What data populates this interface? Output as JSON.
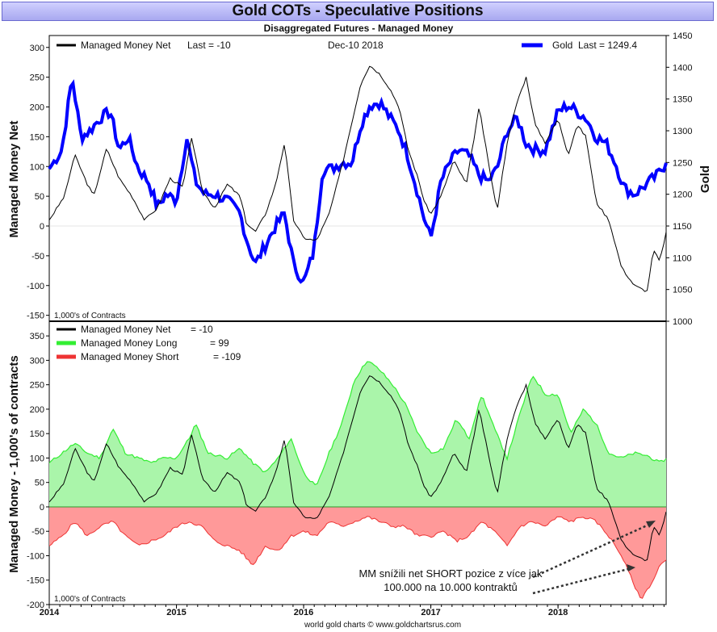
{
  "title": "Gold COTs - Speculative Positions",
  "subtitle": "Disaggregated Futures - Managed Money",
  "footer": "world gold charts © www.goldchartsrus.com",
  "colors": {
    "net": "#000000",
    "gold": "#0000ff",
    "long": "#33ee33",
    "long_fill": "#aaf5aa",
    "short": "#ee3333",
    "short_fill": "#ff9999"
  },
  "chart_data": [
    {
      "type": "line",
      "ylabel": "Managed Money Net",
      "y2label": "Gold",
      "ylim": [
        -160,
        320
      ],
      "y2lim": [
        1000,
        1450
      ],
      "yticks": [
        -150,
        -100,
        -50,
        0,
        50,
        100,
        150,
        200,
        250,
        300
      ],
      "y2ticks": [
        1000,
        1050,
        1100,
        1150,
        1200,
        1250,
        1300,
        1350,
        1400,
        1450
      ],
      "xlim": [
        2014.0,
        2018.85
      ],
      "unit_note": "1,000's of Contracts",
      "date_label": "Dec-10  2018",
      "legend": [
        {
          "name": "Managed Money Net",
          "last_text": "Last = -10"
        },
        {
          "name": "Gold",
          "last_text": "Last = 1249.4"
        }
      ],
      "series": [
        {
          "name": "Managed Money Net",
          "axis": "left",
          "x": [
            2014.0,
            2014.12,
            2014.2,
            2014.3,
            2014.35,
            2014.45,
            2014.55,
            2014.65,
            2014.75,
            2014.85,
            2014.95,
            2015.05,
            2015.12,
            2015.2,
            2015.3,
            2015.4,
            2015.5,
            2015.55,
            2015.62,
            2015.7,
            2015.78,
            2015.85,
            2015.92,
            2016.0,
            2016.1,
            2016.2,
            2016.3,
            2016.38,
            2016.45,
            2016.52,
            2016.6,
            2016.68,
            2016.75,
            2016.82,
            2016.9,
            2016.95,
            2017.0,
            2017.08,
            2017.18,
            2017.28,
            2017.38,
            2017.45,
            2017.52,
            2017.6,
            2017.68,
            2017.75,
            2017.82,
            2017.9,
            2018.0,
            2018.08,
            2018.15,
            2018.22,
            2018.3,
            2018.4,
            2018.5,
            2018.6,
            2018.7,
            2018.75,
            2018.8,
            2018.85
          ],
          "y": [
            10,
            50,
            120,
            70,
            50,
            130,
            80,
            50,
            10,
            30,
            80,
            65,
            150,
            60,
            30,
            70,
            50,
            5,
            -10,
            20,
            70,
            140,
            10,
            -20,
            -25,
            20,
            100,
            175,
            240,
            270,
            255,
            230,
            200,
            130,
            80,
            40,
            20,
            50,
            110,
            70,
            200,
            110,
            25,
            140,
            210,
            250,
            170,
            140,
            180,
            120,
            170,
            150,
            40,
            10,
            -70,
            -100,
            -110,
            -40,
            -60,
            -10
          ]
        },
        {
          "name": "Gold",
          "axis": "right",
          "x": [
            2014.0,
            2014.1,
            2014.18,
            2014.25,
            2014.32,
            2014.4,
            2014.48,
            2014.55,
            2014.62,
            2014.7,
            2014.78,
            2014.85,
            2014.92,
            2015.0,
            2015.08,
            2015.15,
            2015.22,
            2015.3,
            2015.4,
            2015.5,
            2015.55,
            2015.62,
            2015.7,
            2015.78,
            2015.85,
            2015.92,
            2016.0,
            2016.08,
            2016.15,
            2016.22,
            2016.3,
            2016.38,
            2016.45,
            2016.52,
            2016.6,
            2016.68,
            2016.75,
            2016.82,
            2016.9,
            2016.95,
            2017.0,
            2017.08,
            2017.15,
            2017.22,
            2017.3,
            2017.38,
            2017.45,
            2017.52,
            2017.6,
            2017.68,
            2017.75,
            2017.82,
            2017.9,
            2018.0,
            2018.08,
            2018.15,
            2018.22,
            2018.3,
            2018.38,
            2018.45,
            2018.52,
            2018.6,
            2018.66,
            2018.72,
            2018.78,
            2018.85
          ],
          "y": [
            1240,
            1270,
            1385,
            1290,
            1300,
            1320,
            1330,
            1270,
            1290,
            1240,
            1220,
            1180,
            1200,
            1190,
            1290,
            1220,
            1200,
            1200,
            1190,
            1170,
            1130,
            1090,
            1120,
            1150,
            1170,
            1090,
            1060,
            1110,
            1240,
            1240,
            1250,
            1250,
            1310,
            1340,
            1345,
            1320,
            1300,
            1260,
            1200,
            1160,
            1130,
            1220,
            1250,
            1270,
            1260,
            1230,
            1220,
            1240,
            1300,
            1320,
            1280,
            1270,
            1270,
            1330,
            1340,
            1330,
            1320,
            1290,
            1280,
            1250,
            1210,
            1200,
            1210,
            1220,
            1230,
            1249.4
          ]
        }
      ]
    },
    {
      "type": "area",
      "ylabel": "Managed Money - 1,000's of contracts",
      "ylim": [
        -200,
        380
      ],
      "yticks": [
        -200,
        -150,
        -100,
        -50,
        0,
        50,
        100,
        150,
        200,
        250,
        300,
        350
      ],
      "xlim": [
        2014.0,
        2018.85
      ],
      "xticks": [
        2014,
        2015,
        2016,
        2017,
        2018
      ],
      "unit_note": "1,000's of Contracts",
      "annotation": [
        "MM snížili net SHORT pozice z více jak",
        "100.000 na 10.000 kontraktů"
      ],
      "legend": [
        {
          "name": "Managed Money Net",
          "last_text": "= -10"
        },
        {
          "name": "Managed Money Long",
          "last_text": "= 99"
        },
        {
          "name": "Managed Money Short",
          "last_text": "= -109"
        }
      ],
      "series": [
        {
          "name": "Managed Money Long",
          "x": [
            2014.0,
            2014.1,
            2014.2,
            2014.3,
            2014.4,
            2014.5,
            2014.6,
            2014.7,
            2014.8,
            2014.9,
            2015.0,
            2015.1,
            2015.15,
            2015.25,
            2015.4,
            2015.5,
            2015.6,
            2015.7,
            2015.8,
            2015.9,
            2016.0,
            2016.1,
            2016.2,
            2016.3,
            2016.4,
            2016.5,
            2016.6,
            2016.7,
            2016.8,
            2016.9,
            2017.0,
            2017.1,
            2017.2,
            2017.3,
            2017.4,
            2017.5,
            2017.6,
            2017.7,
            2017.8,
            2017.9,
            2018.0,
            2018.1,
            2018.2,
            2018.3,
            2018.4,
            2018.5,
            2018.6,
            2018.7,
            2018.8,
            2018.85
          ],
          "y": [
            90,
            110,
            130,
            110,
            100,
            160,
            110,
            100,
            90,
            100,
            100,
            140,
            170,
            110,
            100,
            120,
            90,
            70,
            100,
            140,
            70,
            40,
            110,
            170,
            260,
            300,
            280,
            250,
            210,
            150,
            110,
            120,
            180,
            140,
            230,
            160,
            100,
            190,
            270,
            230,
            230,
            150,
            200,
            170,
            110,
            100,
            110,
            105,
            90,
            99
          ]
        },
        {
          "name": "Managed Money Short",
          "x": [
            2014.0,
            2014.1,
            2014.2,
            2014.3,
            2014.4,
            2014.5,
            2014.6,
            2014.7,
            2014.8,
            2014.9,
            2015.0,
            2015.1,
            2015.2,
            2015.3,
            2015.4,
            2015.5,
            2015.6,
            2015.7,
            2015.8,
            2015.9,
            2016.0,
            2016.1,
            2016.2,
            2016.3,
            2016.4,
            2016.5,
            2016.6,
            2016.7,
            2016.8,
            2016.9,
            2017.0,
            2017.1,
            2017.2,
            2017.3,
            2017.4,
            2017.5,
            2017.6,
            2017.7,
            2017.8,
            2017.9,
            2018.0,
            2018.1,
            2018.2,
            2018.3,
            2018.4,
            2018.5,
            2018.6,
            2018.65,
            2018.7,
            2018.75,
            2018.8,
            2018.85
          ],
          "y": [
            -80,
            -60,
            -30,
            -60,
            -40,
            -30,
            -60,
            -80,
            -70,
            -60,
            -40,
            -30,
            -40,
            -70,
            -80,
            -90,
            -120,
            -80,
            -90,
            -60,
            -50,
            -60,
            -30,
            -40,
            -30,
            -20,
            -30,
            -40,
            -40,
            -60,
            -60,
            -50,
            -70,
            -60,
            -30,
            -50,
            -80,
            -40,
            -30,
            -40,
            -20,
            -30,
            -20,
            -30,
            -60,
            -100,
            -160,
            -190,
            -170,
            -150,
            -120,
            -109
          ]
        },
        {
          "name": "Managed Money Net",
          "x": [
            2014.0,
            2014.12,
            2014.2,
            2014.3,
            2014.35,
            2014.45,
            2014.55,
            2014.65,
            2014.75,
            2014.85,
            2014.95,
            2015.05,
            2015.12,
            2015.2,
            2015.3,
            2015.4,
            2015.5,
            2015.55,
            2015.62,
            2015.7,
            2015.78,
            2015.85,
            2015.92,
            2016.0,
            2016.1,
            2016.2,
            2016.3,
            2016.38,
            2016.45,
            2016.52,
            2016.6,
            2016.68,
            2016.75,
            2016.82,
            2016.9,
            2016.95,
            2017.0,
            2017.08,
            2017.18,
            2017.28,
            2017.38,
            2017.45,
            2017.52,
            2017.6,
            2017.68,
            2017.75,
            2017.82,
            2017.9,
            2018.0,
            2018.08,
            2018.15,
            2018.22,
            2018.3,
            2018.4,
            2018.5,
            2018.6,
            2018.7,
            2018.75,
            2018.8,
            2018.85
          ],
          "y": [
            10,
            50,
            120,
            70,
            50,
            130,
            80,
            50,
            10,
            30,
            80,
            65,
            150,
            60,
            30,
            70,
            50,
            5,
            -10,
            20,
            70,
            140,
            10,
            -20,
            -25,
            20,
            100,
            175,
            240,
            270,
            255,
            230,
            200,
            130,
            80,
            40,
            20,
            50,
            110,
            70,
            200,
            110,
            25,
            140,
            210,
            250,
            170,
            140,
            180,
            120,
            170,
            150,
            40,
            10,
            -70,
            -100,
            -110,
            -40,
            -60,
            -10
          ]
        }
      ]
    }
  ]
}
